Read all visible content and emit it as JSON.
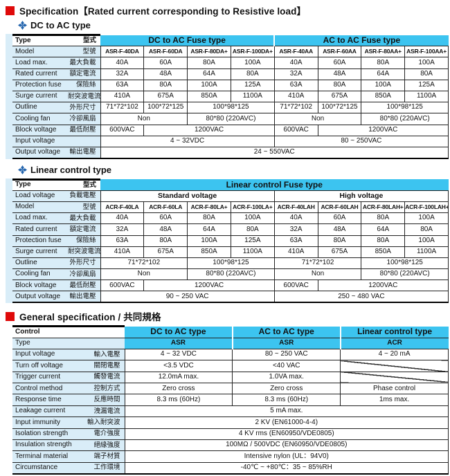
{
  "page": {
    "title": "Specification【Rated current corresponding to Resistive load】",
    "section_dc_ac": "DC to AC type",
    "section_linear": "Linear control type",
    "section_general": "General specification / 共同規格"
  },
  "colors": {
    "header_cyan": "#3cc4f0",
    "label_blue": "#d9edf8",
    "red_bullet": "#df0a0a",
    "clover_blue": "#2566ae"
  },
  "icons": {
    "bullet": "red-square-icon",
    "section_marker": "clover-icon"
  },
  "tables": {
    "dc_ac": {
      "rows": [
        {
          "cls": "hrow",
          "en": "Type",
          "zh": "型式",
          "cells": [
            {
              "t": "DC to AC Fuse type",
              "s": 4,
              "k": "cyan"
            },
            {
              "t": "AC to AC Fuse type",
              "s": 4,
              "k": "cyan"
            }
          ]
        },
        {
          "cls": "models",
          "en": "Model",
          "zh": "型號",
          "cells": [
            {
              "t": "ASR-F-40DA"
            },
            {
              "t": "ASR-F-60DA"
            },
            {
              "t": "ASR-F-80DA+"
            },
            {
              "t": "ASR-F-100DA+"
            },
            {
              "t": "ASR-F-40AA"
            },
            {
              "t": "ASR-F-60AA"
            },
            {
              "t": "ASR-F-80AA+"
            },
            {
              "t": "ASR-F-100AA+"
            }
          ]
        },
        {
          "en": "Load max.",
          "zh": "最大負載",
          "cells": [
            {
              "t": "40A"
            },
            {
              "t": "60A"
            },
            {
              "t": "80A"
            },
            {
              "t": "100A"
            },
            {
              "t": "40A"
            },
            {
              "t": "60A"
            },
            {
              "t": "80A"
            },
            {
              "t": "100A"
            }
          ]
        },
        {
          "en": "Rated current",
          "zh": "額定電流",
          "cells": [
            {
              "t": "32A"
            },
            {
              "t": "48A"
            },
            {
              "t": "64A"
            },
            {
              "t": "80A"
            },
            {
              "t": "32A"
            },
            {
              "t": "48A"
            },
            {
              "t": "64A"
            },
            {
              "t": "80A"
            }
          ]
        },
        {
          "en": "Protection fuse",
          "zh": "保險絲",
          "cells": [
            {
              "t": "63A"
            },
            {
              "t": "80A"
            },
            {
              "t": "100A"
            },
            {
              "t": "125A"
            },
            {
              "t": "63A"
            },
            {
              "t": "80A"
            },
            {
              "t": "100A"
            },
            {
              "t": "125A"
            }
          ]
        },
        {
          "en": "Surge current",
          "zh": "耐突波電流",
          "cells": [
            {
              "t": "410A"
            },
            {
              "t": "675A"
            },
            {
              "t": "850A"
            },
            {
              "t": "1100A"
            },
            {
              "t": "410A"
            },
            {
              "t": "675A"
            },
            {
              "t": "850A"
            },
            {
              "t": "1100A"
            }
          ]
        },
        {
          "en": "Outline",
          "zh": "外形尺寸",
          "cells": [
            {
              "t": "71*72*102"
            },
            {
              "t": "100*72*125"
            },
            {
              "t": "100*98*125",
              "s": 2
            },
            {
              "t": "71*72*102"
            },
            {
              "t": "100*72*125"
            },
            {
              "t": "100*98*125",
              "s": 2
            }
          ]
        },
        {
          "en": "Cooling fan",
          "zh": "冷卻風扇",
          "cells": [
            {
              "t": "Non",
              "s": 2
            },
            {
              "t": "80*80 (220AVC)",
              "s": 2
            },
            {
              "t": "Non",
              "s": 2
            },
            {
              "t": "80*80 (220AVC)",
              "s": 2
            }
          ]
        },
        {
          "en": "Block voltage",
          "zh": "最低耐壓",
          "cells": [
            {
              "t": "600VAC"
            },
            {
              "t": "1200VAC",
              "s": 3
            },
            {
              "t": "600VAC"
            },
            {
              "t": "1200VAC",
              "s": 3
            }
          ]
        },
        {
          "en": "Input voltage",
          "zh": "",
          "cells": [
            {
              "t": "4 ~ 32VDC",
              "s": 4
            },
            {
              "t": "80 ~ 250VAC",
              "s": 4
            }
          ]
        },
        {
          "en": "Output voltage",
          "zh": "輸出電壓",
          "cells": [
            {
              "t": "24 ~ 550VAC",
              "s": 8
            }
          ]
        }
      ]
    },
    "linear": {
      "rows": [
        {
          "cls": "hrow",
          "en": "Type",
          "zh": "型式",
          "cells": [
            {
              "t": "Linear control Fuse type",
              "s": 8,
              "k": "cyan"
            }
          ]
        },
        {
          "cls": "hrow2",
          "en": "Load voltage",
          "zh": "負載電壓",
          "cells": [
            {
              "t": "Standard voltage",
              "s": 4,
              "b": 1
            },
            {
              "t": "High voltage",
              "s": 4,
              "b": 1
            }
          ]
        },
        {
          "cls": "models",
          "en": "Model",
          "zh": "型號",
          "cells": [
            {
              "t": "ACR-F-40LA"
            },
            {
              "t": "ACR-F-60LA"
            },
            {
              "t": "ACR-F-80LA+"
            },
            {
              "t": "ACR-F-100LA+"
            },
            {
              "t": "ACR-F-40LAH"
            },
            {
              "t": "ACR-F-60LAH"
            },
            {
              "t": "ACR-F-80LAH+"
            },
            {
              "t": "ACR-F-100LAH+"
            }
          ]
        },
        {
          "en": "Load max.",
          "zh": "最大負載",
          "cells": [
            {
              "t": "40A"
            },
            {
              "t": "60A"
            },
            {
              "t": "80A"
            },
            {
              "t": "100A"
            },
            {
              "t": "40A"
            },
            {
              "t": "60A"
            },
            {
              "t": "80A"
            },
            {
              "t": "100A"
            }
          ]
        },
        {
          "en": "Rated current",
          "zh": "額定電流",
          "cells": [
            {
              "t": "32A"
            },
            {
              "t": "48A"
            },
            {
              "t": "64A"
            },
            {
              "t": "80A"
            },
            {
              "t": "32A"
            },
            {
              "t": "48A"
            },
            {
              "t": "64A"
            },
            {
              "t": "80A"
            }
          ]
        },
        {
          "en": "Protection fuse",
          "zh": "保險絲",
          "cells": [
            {
              "t": "63A"
            },
            {
              "t": "80A"
            },
            {
              "t": "100A"
            },
            {
              "t": "125A"
            },
            {
              "t": "63A"
            },
            {
              "t": "80A"
            },
            {
              "t": "80A"
            },
            {
              "t": "100A"
            }
          ]
        },
        {
          "en": "Surge current",
          "zh": "耐突波電流",
          "cells": [
            {
              "t": "410A"
            },
            {
              "t": "675A"
            },
            {
              "t": "850A"
            },
            {
              "t": "1100A"
            },
            {
              "t": "410A"
            },
            {
              "t": "675A"
            },
            {
              "t": "850A"
            },
            {
              "t": "1100A"
            }
          ]
        },
        {
          "en": "Outline",
          "zh": "外形尺寸",
          "cells": [
            {
              "t": "71*72*102",
              "s": 2
            },
            {
              "t": "100*98*125",
              "s": 2
            },
            {
              "t": "71*72*102",
              "s": 2
            },
            {
              "t": "100*98*125",
              "s": 2
            }
          ]
        },
        {
          "en": "Cooling fan",
          "zh": "冷卻風扇",
          "cells": [
            {
              "t": "Non",
              "s": 2
            },
            {
              "t": "80*80 (220AVC)",
              "s": 2
            },
            {
              "t": "Non",
              "s": 2
            },
            {
              "t": "80*80 (220AVC)",
              "s": 2
            }
          ]
        },
        {
          "en": "Block voltage",
          "zh": "最低耐壓",
          "cells": [
            {
              "t": "600VAC"
            },
            {
              "t": "1200VAC",
              "s": 3
            },
            {
              "t": "600VAC"
            },
            {
              "t": "1200VAC",
              "s": 3
            }
          ]
        },
        {
          "en": "Output voltage",
          "zh": "輸出電壓",
          "cells": [
            {
              "t": "90 ~ 250 VAC",
              "s": 4
            },
            {
              "t": "250 ~ 480 VAC",
              "s": 4
            }
          ]
        }
      ]
    },
    "general": {
      "rows": [
        {
          "cls": "hrow",
          "en": "Control",
          "zh": "",
          "cells": [
            {
              "t": "DC to AC type",
              "k": "cyan",
              "b": 1
            },
            {
              "t": "AC to AC type",
              "k": "cyan",
              "b": 1
            },
            {
              "t": "Linear control type",
              "k": "cyan",
              "b": 1
            }
          ]
        },
        {
          "cls": "hrow3",
          "en": "Type",
          "zh": "",
          "cells": [
            {
              "t": "ASR",
              "k": "cyan",
              "b": 1
            },
            {
              "t": "ASR",
              "k": "cyan",
              "b": 1
            },
            {
              "t": "ACR",
              "k": "cyan",
              "b": 1
            }
          ]
        },
        {
          "en": "Input voltage",
          "zh": "輸入電壓",
          "cells": [
            {
              "t": "4 ~ 32 VDC"
            },
            {
              "t": "80 ~ 250 VAC"
            },
            {
              "t": "4 ~ 20 mA"
            }
          ]
        },
        {
          "en": "Turn off voltage",
          "zh": "關閉電壓",
          "cells": [
            {
              "t": "<3.5 VDC"
            },
            {
              "t": "<40 VAC"
            },
            {
              "k": "diag"
            }
          ]
        },
        {
          "en": "Trigger current",
          "zh": "觸發電流",
          "cells": [
            {
              "t": "12.0mA max."
            },
            {
              "t": "1.0VA max."
            },
            {
              "k": "diag"
            }
          ]
        },
        {
          "en": "Control method",
          "zh": "控制方式",
          "cells": [
            {
              "t": "Zero cross"
            },
            {
              "t": "Zero cross"
            },
            {
              "t": "Phase control"
            }
          ]
        },
        {
          "en": "Response time",
          "zh": "反應時間",
          "cells": [
            {
              "t": "8.3 ms (60Hz)"
            },
            {
              "t": "8.3 ms (60Hz)"
            },
            {
              "t": "1ms max."
            }
          ]
        },
        {
          "en": "Leakage current",
          "zh": "洩漏電流",
          "cells": [
            {
              "t": "5 mA max.",
              "s": 3
            }
          ]
        },
        {
          "en": "Input immunity",
          "zh": "輸入耐突波",
          "cells": [
            {
              "t": "2 KV (EN61000-4-4)",
              "s": 3
            }
          ]
        },
        {
          "en": "Isolation strength",
          "zh": "電介強度",
          "cells": [
            {
              "t": "4 KV rms (EN60950/VDE0805)",
              "s": 3
            }
          ]
        },
        {
          "en": "Insulation strength",
          "zh": "絕緣強度",
          "cells": [
            {
              "t": "100MΩ / 500VDC (EN60950/VDE0805)",
              "s": 3
            }
          ]
        },
        {
          "en": "Terminal material",
          "zh": "端子材質",
          "cells": [
            {
              "t": "Intensive nylon (UL：94V0)",
              "s": 3
            }
          ]
        },
        {
          "en": "Circumstance",
          "zh": "工作環境",
          "cells": [
            {
              "t": "-40℃ ~ +80℃：35 ~ 85%RH",
              "s": 3
            }
          ]
        }
      ]
    }
  }
}
